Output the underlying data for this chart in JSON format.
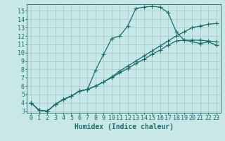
{
  "xlabel": "Humidex (Indice chaleur)",
  "bg_color": "#c8e8e8",
  "line_color": "#1a6b6b",
  "grid_color": "#a0c8c8",
  "xlim": [
    -0.5,
    23.5
  ],
  "ylim": [
    2.8,
    15.8
  ],
  "x_ticks": [
    0,
    1,
    2,
    3,
    4,
    5,
    6,
    7,
    8,
    9,
    10,
    11,
    12,
    13,
    14,
    15,
    16,
    17,
    18,
    19,
    20,
    21,
    22,
    23
  ],
  "y_ticks": [
    3,
    4,
    5,
    6,
    7,
    8,
    9,
    10,
    11,
    12,
    13,
    14,
    15
  ],
  "line1_x": [
    0,
    1,
    2,
    3,
    4,
    5,
    6,
    7,
    8,
    9,
    10,
    11,
    12,
    13,
    14,
    15,
    16,
    17,
    18,
    19,
    20,
    21,
    22,
    23
  ],
  "line1_y": [
    4.0,
    3.1,
    3.0,
    3.8,
    4.4,
    4.8,
    5.4,
    5.6,
    7.9,
    9.8,
    11.7,
    12.0,
    13.2,
    15.3,
    15.45,
    15.55,
    15.45,
    14.8,
    12.5,
    11.5,
    11.3,
    11.1,
    11.3,
    10.9
  ],
  "line2_x": [
    0,
    1,
    2,
    3,
    4,
    5,
    6,
    7,
    8,
    9,
    10,
    11,
    12,
    13,
    14,
    15,
    16,
    17,
    18,
    19,
    20,
    21,
    22,
    23
  ],
  "line2_y": [
    4.0,
    3.1,
    3.0,
    3.8,
    4.4,
    4.8,
    5.4,
    5.6,
    6.0,
    6.5,
    7.0,
    7.6,
    8.1,
    8.7,
    9.2,
    9.8,
    10.3,
    10.9,
    11.4,
    11.5,
    11.5,
    11.5,
    11.4,
    11.3
  ],
  "line3_x": [
    0,
    1,
    2,
    3,
    4,
    5,
    6,
    7,
    8,
    9,
    10,
    11,
    12,
    13,
    14,
    15,
    16,
    17,
    18,
    19,
    20,
    21,
    22,
    23
  ],
  "line3_y": [
    4.0,
    3.1,
    3.0,
    3.8,
    4.4,
    4.8,
    5.4,
    5.6,
    6.0,
    6.5,
    7.1,
    7.8,
    8.4,
    9.0,
    9.6,
    10.2,
    10.8,
    11.4,
    12.0,
    12.5,
    13.0,
    13.2,
    13.4,
    13.5
  ],
  "markersize": 3,
  "linewidth": 0.9,
  "fontsize_axis": 6,
  "fontsize_label": 7
}
